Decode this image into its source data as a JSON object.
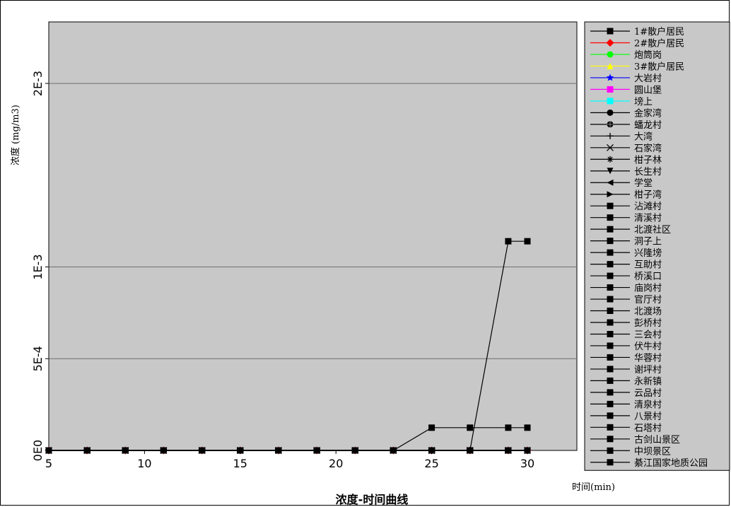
{
  "chart_data": {
    "type": "line",
    "title": "浓度-时间曲线",
    "xlabel": "时间(min)",
    "ylabel": "浓度 (mg/m3)",
    "xlim": [
      5,
      33
    ],
    "ylim": [
      0,
      0.0026
    ],
    "x_ticks": [
      5,
      10,
      15,
      20,
      25,
      30
    ],
    "x_tick_labels": [
      "5",
      "10",
      "15",
      "20",
      "25",
      "30"
    ],
    "y_ticks": [
      0,
      0.0005,
      0.001,
      0.002
    ],
    "y_tick_labels": [
      "0E0",
      "5E-4",
      "1E-3",
      "2E-3"
    ],
    "y_gridlines": [
      0.0005,
      0.001,
      0.002
    ],
    "grid": true,
    "plot_background": "#c8c8c8",
    "legend_position": "right",
    "x": [
      5,
      7,
      9,
      11,
      13,
      15,
      17,
      19,
      21,
      23,
      25,
      27,
      29,
      30
    ],
    "series": [
      {
        "name": "1#散户居民",
        "color": "#000000",
        "marker": "square",
        "values": [
          0,
          0,
          0,
          0,
          0,
          0,
          0,
          0,
          0,
          0,
          0.000124,
          0.000124,
          0.000124,
          0.000124
        ]
      },
      {
        "name": "2#散户居民",
        "color": "#ff0000",
        "marker": "diamond",
        "values": [
          0,
          0,
          0,
          0,
          0,
          0,
          0,
          0,
          0,
          0,
          0,
          0,
          0,
          0
        ]
      },
      {
        "name": "炮筒岗",
        "color": "#00ff00",
        "marker": "circle",
        "values": [
          0,
          0,
          0,
          0,
          0,
          0,
          0,
          0,
          0,
          0,
          0,
          0,
          0,
          0
        ]
      },
      {
        "name": "3#散户居民",
        "color": "#ffff00",
        "marker": "triangle-up",
        "values": [
          0,
          0,
          0,
          0,
          0,
          0,
          0,
          0,
          0,
          0,
          0,
          0,
          0,
          0
        ]
      },
      {
        "name": "大岩村",
        "color": "#0000ff",
        "marker": "star",
        "values": [
          0,
          0,
          0,
          0,
          0,
          0,
          0,
          0,
          0,
          0,
          0,
          0,
          0,
          0
        ]
      },
      {
        "name": "圆山堡",
        "color": "#ff00ff",
        "marker": "square",
        "values": [
          0,
          0,
          0,
          0,
          0,
          0,
          0,
          0,
          0,
          0,
          0,
          0,
          0,
          0
        ]
      },
      {
        "name": "塝上",
        "color": "#00ffff",
        "marker": "square",
        "values": [
          0,
          0,
          0,
          0,
          0,
          0,
          0,
          0,
          0,
          0,
          0,
          0,
          0,
          0
        ]
      },
      {
        "name": "金家湾",
        "color": "#000000",
        "marker": "circle",
        "values": [
          0,
          0,
          0,
          0,
          0,
          0,
          0,
          0,
          0,
          0,
          0,
          0,
          0,
          0
        ]
      },
      {
        "name": "蟠龙村",
        "color": "#000000",
        "marker": "circle-cross",
        "values": [
          0,
          0,
          0,
          0,
          0,
          0,
          0,
          0,
          0,
          0,
          0,
          0,
          0,
          0
        ]
      },
      {
        "name": "大湾",
        "color": "#000000",
        "marker": "plus",
        "values": [
          0,
          0,
          0,
          0,
          0,
          0,
          0,
          0,
          0,
          0,
          0,
          0,
          0,
          0
        ]
      },
      {
        "name": "石家湾",
        "color": "#000000",
        "marker": "x",
        "values": [
          0,
          0,
          0,
          0,
          0,
          0,
          0,
          0,
          0,
          0,
          0,
          0,
          0,
          0
        ]
      },
      {
        "name": "柑子林",
        "color": "#000000",
        "marker": "asterisk",
        "values": [
          0,
          0,
          0,
          0,
          0,
          0,
          0,
          0,
          0,
          0,
          0,
          0,
          0,
          0
        ]
      },
      {
        "name": "长生村",
        "color": "#000000",
        "marker": "triangle-down",
        "values": [
          0,
          0,
          0,
          0,
          0,
          0,
          0,
          0,
          0,
          0,
          0,
          0,
          0,
          0
        ]
      },
      {
        "name": "学堂",
        "color": "#000000",
        "marker": "triangle-left",
        "values": [
          0,
          0,
          0,
          0,
          0,
          0,
          0,
          0,
          0,
          0,
          0,
          0,
          0,
          0
        ]
      },
      {
        "name": "柑子湾",
        "color": "#000000",
        "marker": "triangle-right",
        "values": [
          0,
          0,
          0,
          0,
          0,
          0,
          0,
          0,
          0,
          0,
          0,
          0,
          0,
          0
        ]
      },
      {
        "name": "沾滩村",
        "color": "#000000",
        "marker": "square",
        "values": [
          0,
          0,
          0,
          0,
          0,
          0,
          0,
          0,
          0,
          0,
          0,
          0,
          0.00114,
          0.00114
        ]
      },
      {
        "name": "清溪村",
        "color": "#000000",
        "marker": "square",
        "values": [
          0,
          0,
          0,
          0,
          0,
          0,
          0,
          0,
          0,
          0,
          0,
          0,
          0,
          0
        ]
      },
      {
        "name": "北渡社区",
        "color": "#000000",
        "marker": "square",
        "values": [
          0,
          0,
          0,
          0,
          0,
          0,
          0,
          0,
          0,
          0,
          0,
          0,
          0,
          0
        ]
      },
      {
        "name": "洞子上",
        "color": "#000000",
        "marker": "square",
        "values": [
          0,
          0,
          0,
          0,
          0,
          0,
          0,
          0,
          0,
          0,
          0,
          0,
          0,
          0
        ]
      },
      {
        "name": "兴隆塝",
        "color": "#000000",
        "marker": "square",
        "values": [
          0,
          0,
          0,
          0,
          0,
          0,
          0,
          0,
          0,
          0,
          0,
          0,
          0,
          0
        ]
      },
      {
        "name": "互助村",
        "color": "#000000",
        "marker": "square",
        "values": [
          0,
          0,
          0,
          0,
          0,
          0,
          0,
          0,
          0,
          0,
          0,
          0,
          0,
          0
        ]
      },
      {
        "name": "桥溪口",
        "color": "#000000",
        "marker": "square",
        "values": [
          0,
          0,
          0,
          0,
          0,
          0,
          0,
          0,
          0,
          0,
          0,
          0,
          0,
          0
        ]
      },
      {
        "name": "庙岗村",
        "color": "#000000",
        "marker": "square",
        "values": [
          0,
          0,
          0,
          0,
          0,
          0,
          0,
          0,
          0,
          0,
          0,
          0,
          0,
          0
        ]
      },
      {
        "name": "官厅村",
        "color": "#000000",
        "marker": "square",
        "values": [
          0,
          0,
          0,
          0,
          0,
          0,
          0,
          0,
          0,
          0,
          0,
          0,
          0,
          0
        ]
      },
      {
        "name": "北渡场",
        "color": "#000000",
        "marker": "square",
        "values": [
          0,
          0,
          0,
          0,
          0,
          0,
          0,
          0,
          0,
          0,
          0,
          0,
          0,
          0
        ]
      },
      {
        "name": "彭桥村",
        "color": "#000000",
        "marker": "square",
        "values": [
          0,
          0,
          0,
          0,
          0,
          0,
          0,
          0,
          0,
          0,
          0,
          0,
          0,
          0
        ]
      },
      {
        "name": "三会村",
        "color": "#000000",
        "marker": "square",
        "values": [
          0,
          0,
          0,
          0,
          0,
          0,
          0,
          0,
          0,
          0,
          0,
          0,
          0,
          0
        ]
      },
      {
        "name": "伏牛村",
        "color": "#000000",
        "marker": "square",
        "values": [
          0,
          0,
          0,
          0,
          0,
          0,
          0,
          0,
          0,
          0,
          0,
          0,
          0,
          0
        ]
      },
      {
        "name": "华蓉村",
        "color": "#000000",
        "marker": "square",
        "values": [
          0,
          0,
          0,
          0,
          0,
          0,
          0,
          0,
          0,
          0,
          0,
          0,
          0,
          0
        ]
      },
      {
        "name": "谢坪村",
        "color": "#000000",
        "marker": "square",
        "values": [
          0,
          0,
          0,
          0,
          0,
          0,
          0,
          0,
          0,
          0,
          0,
          0,
          0,
          0
        ]
      },
      {
        "name": "永新镇",
        "color": "#000000",
        "marker": "square",
        "values": [
          0,
          0,
          0,
          0,
          0,
          0,
          0,
          0,
          0,
          0,
          0,
          0,
          0,
          0
        ]
      },
      {
        "name": "云品村",
        "color": "#000000",
        "marker": "square",
        "values": [
          0,
          0,
          0,
          0,
          0,
          0,
          0,
          0,
          0,
          0,
          0,
          0,
          0,
          0
        ]
      },
      {
        "name": "清泉村",
        "color": "#000000",
        "marker": "square",
        "values": [
          0,
          0,
          0,
          0,
          0,
          0,
          0,
          0,
          0,
          0,
          0,
          0,
          0,
          0
        ]
      },
      {
        "name": "八景村",
        "color": "#000000",
        "marker": "square",
        "values": [
          0,
          0,
          0,
          0,
          0,
          0,
          0,
          0,
          0,
          0,
          0,
          0,
          0,
          0
        ]
      },
      {
        "name": "石塔村",
        "color": "#000000",
        "marker": "square",
        "values": [
          0,
          0,
          0,
          0,
          0,
          0,
          0,
          0,
          0,
          0,
          0,
          0,
          0,
          0
        ]
      },
      {
        "name": "古剑山景区",
        "color": "#000000",
        "marker": "square",
        "values": [
          0,
          0,
          0,
          0,
          0,
          0,
          0,
          0,
          0,
          0,
          0,
          0,
          0,
          0
        ]
      },
      {
        "name": "中坝景区",
        "color": "#000000",
        "marker": "square",
        "values": [
          0,
          0,
          0,
          0,
          0,
          0,
          0,
          0,
          0,
          0,
          0,
          0,
          0,
          0
        ]
      },
      {
        "name": "綦江国家地质公园",
        "color": "#000000",
        "marker": "square",
        "values": [
          0,
          0,
          0,
          0,
          0,
          0,
          0,
          0,
          0,
          0,
          0,
          0,
          0,
          0
        ]
      }
    ]
  }
}
